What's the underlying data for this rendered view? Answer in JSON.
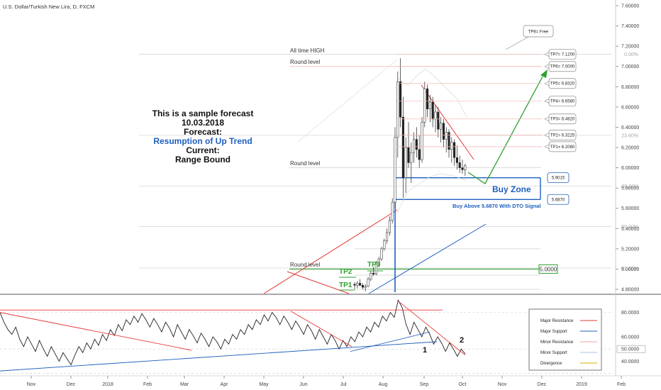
{
  "header": {
    "title": "U.S. Dollar/Turkish New Lira, D, FXCM"
  },
  "forecast": {
    "line1": "This is a sample forecast",
    "line2": "10.03.2018",
    "line3": "Forecast:",
    "line4": "Resumption of Up Trend",
    "line5": "Current:",
    "line6": "Range Bound"
  },
  "annotations": {
    "all_time_high": "All time HIGH",
    "round_level": "Round level",
    "buy_zone": "Buy Zone",
    "buy_above": "Buy Above 5.6870 With DTO Signal",
    "tp_labels": [
      "TP1",
      "TP2",
      "TP3"
    ],
    "divergence_marks": [
      "1",
      "2"
    ]
  },
  "chart_data": {
    "type": "line",
    "title": "U.S. Dollar/Turkish New Lira, D, FXCM",
    "price_axis": {
      "ticks": [
        4.8,
        5.0,
        5.2,
        5.4,
        5.6,
        5.8,
        6.0,
        6.2,
        6.4,
        6.6,
        6.8,
        7.0,
        7.2,
        7.4,
        7.6
      ],
      "labels": [
        "4.80000",
        "5.00000",
        "5.20000",
        "5.40000",
        "5.60000",
        "5.80000",
        "6.00000",
        "6.20000",
        "6.40000",
        "6.60000",
        "6.80000",
        "7.00000",
        "7.20000",
        "7.40000",
        "7.60000"
      ],
      "range": [
        4.64,
        7.66
      ]
    },
    "x_axis": {
      "labels": [
        "Nov",
        "Dec",
        "2018",
        "Feb",
        "Mar",
        "Apr",
        "May",
        "Jun",
        "Jul",
        "Aug",
        "Sep",
        "Oct",
        "Nov",
        "Dec",
        "2019",
        "Feb"
      ]
    },
    "fib_levels": [
      {
        "label": "0.00%",
        "price": 7.12
      },
      {
        "label": "23.60%",
        "price": 6.32
      },
      {
        "label": "38.20%",
        "price": 5.82
      },
      {
        "label": "50.00%",
        "price": 5.42
      },
      {
        "label": "61.80%",
        "price": 5.01
      }
    ],
    "round_levels": [
      7.0,
      6.0,
      5.0
    ],
    "targets": [
      {
        "label": "TP8= Free"
      },
      {
        "label": "TP7= 7.1200",
        "price": 7.12
      },
      {
        "label": "TP6= 7.0000",
        "price": 7.0
      },
      {
        "label": "TP5= 6.8320",
        "price": 6.832
      },
      {
        "label": "TP4= 6.6580",
        "price": 6.658
      },
      {
        "label": "TP3= 6.4820",
        "price": 6.482
      },
      {
        "label": "TP2= 6.3225",
        "price": 6.3225
      },
      {
        "label": "TP1= 6.2080",
        "price": 6.208
      }
    ],
    "buy_zone": {
      "upper": 5.9015,
      "lower": 5.687,
      "upper_label": "5.9015",
      "lower_label": "5.6870"
    },
    "key_level": {
      "price": 5.0,
      "label": "5.0000"
    },
    "candles": [
      [
        4.85,
        4.87,
        4.8,
        4.84
      ],
      [
        4.84,
        4.88,
        4.81,
        4.86
      ],
      [
        4.86,
        4.9,
        4.83,
        4.84
      ],
      [
        4.84,
        4.86,
        4.8,
        4.82
      ],
      [
        4.82,
        4.85,
        4.78,
        4.83
      ],
      [
        4.83,
        4.92,
        4.82,
        4.9
      ],
      [
        4.9,
        4.98,
        4.88,
        4.96
      ],
      [
        4.96,
        5.02,
        4.93,
        4.95
      ],
      [
        4.95,
        5.08,
        4.94,
        5.05
      ],
      [
        5.05,
        5.12,
        5.02,
        5.1
      ],
      [
        5.1,
        5.22,
        5.08,
        5.2
      ],
      [
        5.2,
        5.3,
        5.18,
        5.28
      ],
      [
        5.28,
        5.4,
        5.25,
        5.36
      ],
      [
        5.36,
        5.52,
        5.33,
        5.48
      ],
      [
        5.48,
        5.7,
        5.45,
        5.66
      ],
      [
        5.66,
        6.4,
        5.6,
        6.3
      ],
      [
        6.3,
        6.95,
        6.1,
        6.85
      ],
      [
        6.85,
        7.08,
        6.4,
        6.5
      ],
      [
        6.5,
        6.7,
        5.7,
        5.9
      ],
      [
        5.9,
        6.3,
        5.75,
        6.2
      ],
      [
        6.2,
        6.45,
        6.0,
        6.05
      ],
      [
        6.05,
        6.25,
        5.85,
        6.15
      ],
      [
        6.15,
        6.35,
        6.05,
        6.28
      ],
      [
        6.28,
        6.4,
        6.1,
        6.18
      ],
      [
        6.18,
        6.32,
        6.0,
        6.08
      ],
      [
        6.08,
        6.5,
        6.05,
        6.45
      ],
      [
        6.45,
        6.85,
        6.4,
        6.78
      ],
      [
        6.78,
        6.82,
        6.5,
        6.58
      ],
      [
        6.58,
        6.72,
        6.45,
        6.65
      ],
      [
        6.65,
        6.7,
        6.4,
        6.48
      ],
      [
        6.48,
        6.62,
        6.35,
        6.55
      ],
      [
        6.55,
        6.6,
        6.3,
        6.38
      ],
      [
        6.38,
        6.5,
        6.25,
        6.44
      ],
      [
        6.44,
        6.48,
        6.2,
        6.28
      ],
      [
        6.28,
        6.4,
        6.15,
        6.35
      ],
      [
        6.35,
        6.38,
        6.1,
        6.18
      ],
      [
        6.18,
        6.3,
        6.05,
        6.25
      ],
      [
        6.25,
        6.28,
        6.02,
        6.1
      ],
      [
        6.1,
        6.22,
        5.98,
        6.05
      ],
      [
        6.05,
        6.12,
        5.95,
        6.0
      ],
      [
        6.0,
        6.08,
        5.94,
        5.98
      ],
      [
        5.98,
        6.04,
        5.92,
        6.02
      ]
    ],
    "oscillator": {
      "ticks": [
        40,
        60,
        80
      ],
      "labels": [
        "40.0000",
        "60.0000",
        "80.0000"
      ],
      "current_label": "50.0000",
      "range": [
        28,
        92
      ],
      "values": [
        80,
        72,
        66,
        62,
        68,
        58,
        52,
        60,
        54,
        48,
        57,
        50,
        44,
        52,
        46,
        40,
        47,
        42,
        37,
        45,
        52,
        47,
        55,
        50,
        58,
        53,
        62,
        57,
        66,
        61,
        70,
        65,
        74,
        70,
        77,
        72,
        79,
        74,
        68,
        75,
        70,
        64,
        72,
        67,
        60,
        70,
        64,
        58,
        66,
        61,
        55,
        63,
        58,
        52,
        60,
        56,
        50,
        58,
        54,
        62,
        58,
        66,
        62,
        70,
        66,
        74,
        70,
        78,
        73,
        80,
        76,
        70,
        77,
        72,
        66,
        73,
        68,
        62,
        70,
        65,
        58,
        66,
        60,
        54,
        62,
        57,
        50,
        57,
        52,
        60,
        56,
        64,
        60,
        68,
        64,
        72,
        68,
        77,
        73,
        80,
        76,
        90,
        84,
        70,
        62,
        72,
        66,
        60,
        68,
        62,
        54,
        60,
        55,
        48,
        55,
        50,
        44,
        50,
        46
      ]
    },
    "legend": {
      "items": [
        {
          "label": "Major Resistance",
          "color": "#e53935"
        },
        {
          "label": "Major Support",
          "color": "#1f5fbf"
        },
        {
          "label": "Minor Resistance",
          "color": "#f0a0a0"
        },
        {
          "label": "Minor Support",
          "color": "#a8c4ea"
        },
        {
          "label": "Divergence",
          "color": "#d4b000"
        }
      ],
      "placement": "bottom-right"
    },
    "colors": {
      "up": "#ffffff",
      "down": "#222222",
      "resistance": "#e53935",
      "support": "#1f5fbf",
      "forecast": "#2ea02e"
    }
  }
}
